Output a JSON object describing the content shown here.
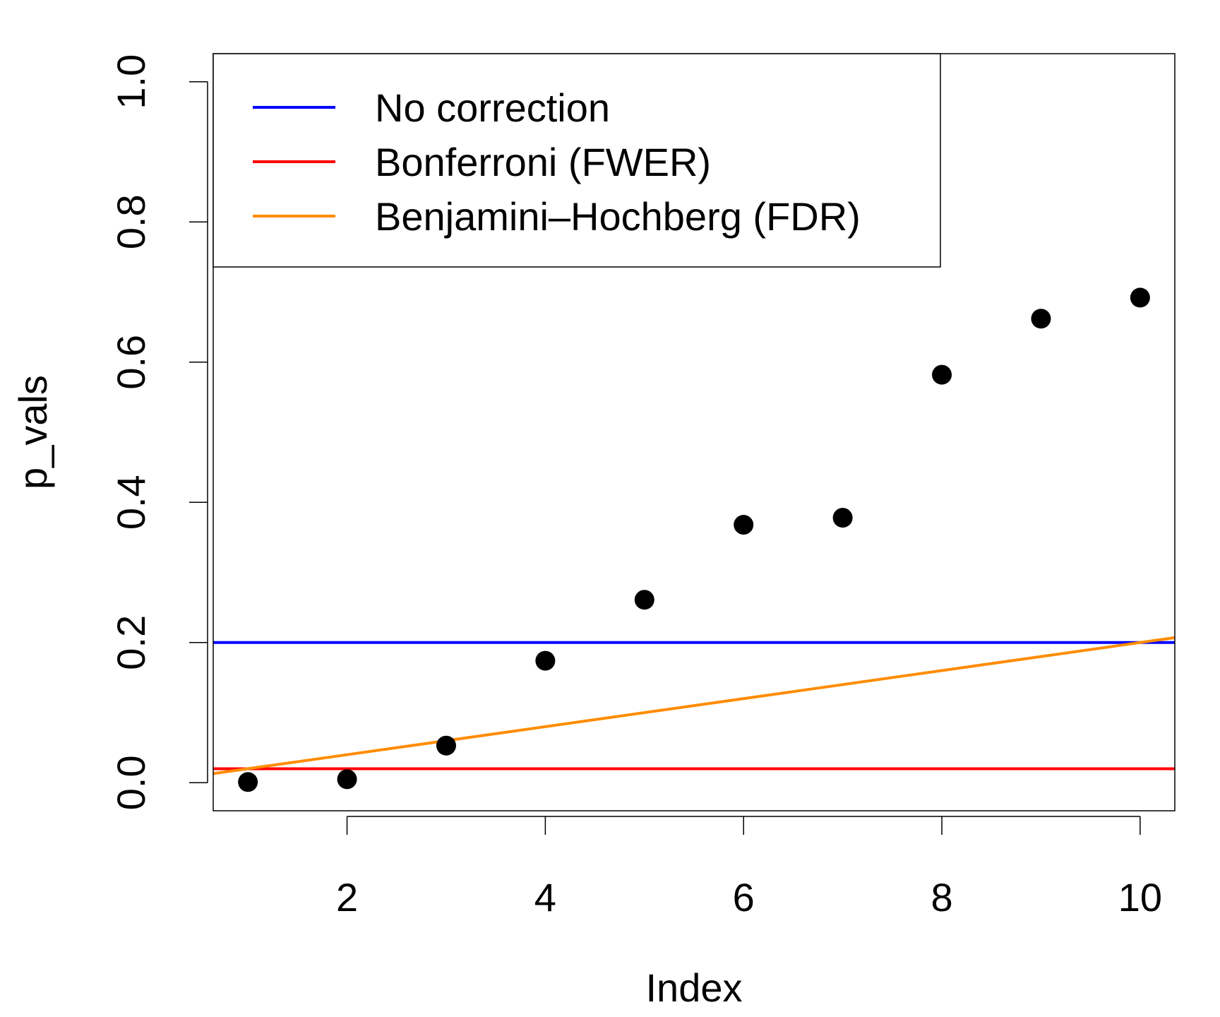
{
  "chart_data": {
    "type": "scatter",
    "title": "",
    "xlabel": "Index",
    "ylabel": "p_vals",
    "xlim": [
      0.65,
      10.35
    ],
    "ylim": [
      -0.04,
      1.04
    ],
    "x_ticks": [
      "2",
      "4",
      "6",
      "8",
      "10"
    ],
    "y_ticks": [
      "0.0",
      "0.2",
      "0.4",
      "0.6",
      "0.8",
      "1.0"
    ],
    "grid": false,
    "legend_position": "top-left",
    "points": {
      "x": [
        1,
        2,
        3,
        4,
        5,
        6,
        7,
        8,
        9,
        10
      ],
      "y": [
        0.001,
        0.005,
        0.053,
        0.174,
        0.261,
        0.368,
        0.378,
        0.582,
        0.662,
        0.692
      ],
      "color": "#000000"
    },
    "reference_lines": [
      {
        "name": "No correction",
        "kind": "horizontal",
        "y": 0.2,
        "color": "#0000ff"
      },
      {
        "name": "Bonferroni (FWER)",
        "kind": "horizontal",
        "y": 0.02,
        "color": "#ff0000"
      },
      {
        "name": "Benjamini–Hochberg (FDR)",
        "kind": "slope",
        "slope": 0.02,
        "intercept": 0,
        "color": "#ff8c00"
      }
    ]
  }
}
